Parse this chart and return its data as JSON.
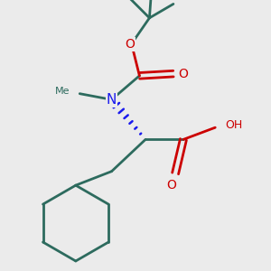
{
  "background_color": "#ebebeb",
  "bond_color": "#2d6b5e",
  "n_color": "#1a1aee",
  "o_color": "#cc0000",
  "line_width": 2.0,
  "fig_size": [
    3.0,
    3.0
  ],
  "dpi": 100,
  "xlim": [
    -0.65,
    0.65
  ],
  "ylim": [
    -0.68,
    0.68
  ]
}
